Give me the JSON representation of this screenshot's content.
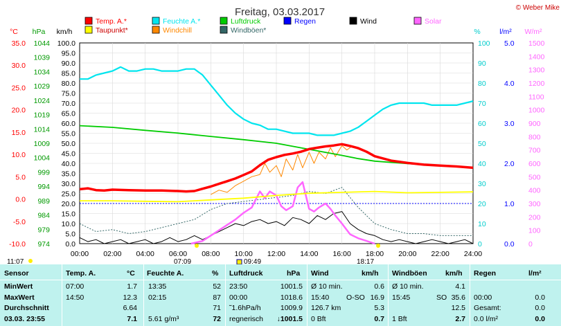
{
  "copyright": "© Weber Mike",
  "chart_data": {
    "type": "line",
    "title": "Freitag, 03.03.2017",
    "x_ticks": [
      "00:00",
      "02:00",
      "04:00",
      "06:00",
      "08:00",
      "10:00",
      "12:00",
      "14:00",
      "16:00",
      "18:00",
      "20:00",
      "22:00",
      "24:00"
    ],
    "x_range_hours": [
      0,
      24
    ],
    "axes": {
      "temp_c": {
        "label": "°C",
        "range": [
          -10,
          35
        ],
        "ticks": [
          "35.0",
          "30.0",
          "25.0",
          "20.0",
          "15.0",
          "10.0",
          "5.0",
          "0.0",
          "-5.0",
          "-10.0"
        ],
        "color": "#ff0000"
      },
      "pressure_hpa": {
        "label": "hPa",
        "range": [
          974,
          1047
        ],
        "ticks": [
          "1044",
          "1039",
          "1034",
          "1029",
          "1024",
          "1019",
          "1014",
          "1009",
          "1004",
          "999",
          "994",
          "989",
          "984",
          "979",
          "974"
        ],
        "color": "#009900"
      },
      "speed_kmh": {
        "label": "km/h",
        "range": [
          0,
          100
        ],
        "ticks": [
          "100.0",
          "95.0",
          "90.0",
          "85.0",
          "80.0",
          "75.0",
          "70.0",
          "65.0",
          "60.0",
          "55.0",
          "50.0",
          "45.0",
          "40.0",
          "35.0",
          "30.0",
          "25.0",
          "20.0",
          "15.0",
          "10.0",
          "5.0",
          "0.0"
        ],
        "color": "#000000"
      },
      "humidity_pct": {
        "label": "%",
        "range": [
          0,
          100
        ],
        "ticks": [
          "100",
          "90",
          "80",
          "70",
          "60",
          "50",
          "40",
          "30",
          "20",
          "10",
          "0"
        ],
        "color": "#00cccc"
      },
      "rain_lm2": {
        "label": "l/m²",
        "range": [
          0,
          5
        ],
        "ticks": [
          "5.0",
          "4.0",
          "3.0",
          "2.0",
          "1.0",
          "0.0"
        ],
        "color": "#0000ff"
      },
      "solar_wm2": {
        "label": "W/m²",
        "range": [
          0,
          1500
        ],
        "ticks": [
          "1500",
          "1400",
          "1300",
          "1200",
          "1100",
          "1000",
          "900",
          "800",
          "700",
          "600",
          "500",
          "400",
          "300",
          "200",
          "100",
          "0"
        ],
        "color": "#ff66ff"
      }
    },
    "legend": [
      {
        "name": "Temp. A.*",
        "color": "#ff0000"
      },
      {
        "name": "Feuchte A.*",
        "color": "#00e5ee"
      },
      {
        "name": "Luftdruck",
        "color": "#00cc00"
      },
      {
        "name": "Regen",
        "color": "#0000ff"
      },
      {
        "name": "Wind",
        "color": "#000000"
      },
      {
        "name": "Solar",
        "color": "#ff66ff"
      },
      {
        "name": "Taupunkt*",
        "color": "#ffff00"
      },
      {
        "name": "Windchill",
        "color": "#ff8800"
      },
      {
        "name": "Windböen*",
        "color": "#336666"
      }
    ],
    "series": [
      {
        "name": "Temp. A.*",
        "axis": "temp_c",
        "color": "#ff0000",
        "x": [
          0,
          0.5,
          1,
          1.5,
          2,
          3,
          4,
          5,
          6,
          6.5,
          7,
          7.5,
          8,
          8.5,
          9,
          9.5,
          10,
          10.5,
          11,
          11.5,
          12,
          12.5,
          13,
          13.5,
          14,
          14.5,
          15,
          15.5,
          16,
          16.5,
          17,
          17.5,
          18,
          19,
          20,
          21,
          22,
          23,
          24
        ],
        "y": [
          2.2,
          2.4,
          2.0,
          1.9,
          2.1,
          2.0,
          1.9,
          1.9,
          1.8,
          1.7,
          1.8,
          2.3,
          2.8,
          3.4,
          4.0,
          4.6,
          5.4,
          6.2,
          7.6,
          8.8,
          9.4,
          9.9,
          10.2,
          10.6,
          11.2,
          11.5,
          11.8,
          12.0,
          12.3,
          11.9,
          11.4,
          10.6,
          9.6,
          8.6,
          8.1,
          7.7,
          7.5,
          7.3,
          7.0
        ]
      },
      {
        "name": "Feuchte A.*",
        "axis": "humidity_pct",
        "color": "#00e5ee",
        "x": [
          0,
          0.5,
          1,
          1.5,
          2,
          2.5,
          3,
          3.5,
          4,
          4.5,
          5,
          5.5,
          6,
          6.5,
          7,
          7.5,
          8,
          8.5,
          9,
          9.5,
          10,
          10.5,
          11,
          11.5,
          12,
          12.5,
          13,
          13.5,
          14,
          14.5,
          15,
          15.5,
          16,
          16.5,
          17,
          17.5,
          18,
          18.5,
          19,
          19.5,
          20,
          20.5,
          21,
          21.5,
          22,
          22.5,
          23,
          23.5,
          24
        ],
        "y": [
          82,
          82,
          84,
          85,
          86,
          88,
          86,
          86,
          87,
          87,
          86,
          86,
          86,
          87,
          87,
          84,
          79,
          74,
          69,
          65,
          62,
          60,
          59,
          57,
          57,
          56,
          55,
          55,
          55,
          54,
          54,
          54,
          55,
          56,
          58,
          61,
          64,
          67,
          69,
          70,
          70,
          70,
          70,
          69,
          69,
          69,
          69,
          70,
          71
        ]
      },
      {
        "name": "Luftdruck",
        "axis": "pressure_hpa",
        "color": "#00cc00",
        "x": [
          0,
          2,
          4,
          6,
          8,
          10,
          12,
          14,
          16,
          17,
          18,
          20,
          22,
          24
        ],
        "y": [
          1016.9,
          1016.3,
          1015.2,
          1014.2,
          1013.0,
          1011.8,
          1010.5,
          1008.3,
          1006.1,
          1004.9,
          1004.0,
          1003.1,
          1002.4,
          1001.6
        ]
      },
      {
        "name": "Taupunkt*",
        "axis": "temp_c",
        "color": "#ffff00",
        "x": [
          0,
          2,
          4,
          6,
          7,
          8,
          10,
          12,
          14,
          16,
          18,
          20,
          22,
          24
        ],
        "y": [
          -0.4,
          -0.4,
          -0.5,
          -0.6,
          -0.4,
          -0.2,
          0.2,
          0.8,
          1.3,
          1.5,
          1.7,
          1.4,
          1.5,
          1.6
        ]
      },
      {
        "name": "Windchill",
        "axis": "temp_c",
        "color": "#ff8800",
        "x": [
          8,
          8.5,
          9,
          9.5,
          10,
          10.5,
          11,
          11.3,
          11.6,
          12,
          12.3,
          12.6,
          13,
          13.3,
          13.6,
          14,
          14.3,
          14.6,
          15,
          15.3,
          15.6,
          16,
          16.3,
          16.6,
          17
        ],
        "y": [
          1.0,
          2.0,
          1.5,
          3.0,
          4.0,
          5.0,
          5.5,
          8.0,
          6.0,
          7.5,
          5.0,
          9.0,
          6.5,
          10.0,
          7.0,
          10.5,
          8.0,
          10.5,
          9.0,
          11.5,
          9.5,
          12.0,
          11.0,
          11.8,
          11.2
        ]
      },
      {
        "name": "Wind",
        "axis": "speed_kmh",
        "color": "#000000",
        "x": [
          0,
          0.5,
          1,
          1.5,
          2,
          2.5,
          3,
          3.5,
          4,
          4.5,
          5,
          5.5,
          6,
          6.5,
          7,
          7.5,
          8,
          8.5,
          9,
          9.5,
          10,
          10.5,
          11,
          11.5,
          12,
          12.5,
          13,
          13.5,
          14,
          14.5,
          15,
          15.5,
          16,
          16.5,
          17,
          17.5,
          18,
          18.5,
          19,
          19.5,
          20,
          20.5,
          21,
          21.5,
          22,
          22.5,
          23,
          23.5,
          24
        ],
        "y": [
          3,
          1,
          2,
          0,
          1,
          2,
          0,
          1,
          2,
          0,
          1,
          3,
          1,
          2,
          4,
          2,
          4,
          6,
          8,
          10,
          9,
          11,
          12,
          10,
          11,
          9,
          13,
          12,
          10,
          14,
          12,
          15,
          16,
          10,
          7,
          5,
          4,
          2,
          1,
          2,
          1,
          0,
          1,
          2,
          1,
          0,
          1,
          2,
          0
        ]
      },
      {
        "name": "Windböen*",
        "axis": "speed_kmh",
        "color": "#336666",
        "x": [
          0,
          1,
          2,
          3,
          4,
          5,
          6,
          7,
          8,
          9,
          10,
          11,
          12,
          13,
          14,
          15,
          16,
          17,
          18,
          19,
          20,
          21,
          22,
          23,
          24
        ],
        "y": [
          10,
          6,
          7,
          5,
          6,
          8,
          10,
          12,
          17,
          20,
          21,
          22,
          23,
          24,
          26,
          25,
          28,
          18,
          10,
          7,
          5,
          5,
          4,
          4,
          4
        ]
      },
      {
        "name": "Solar",
        "axis": "solar_wm2",
        "color": "#ff66ff",
        "x": [
          6.8,
          7.5,
          8,
          8.5,
          9,
          9.5,
          10,
          10.5,
          11,
          11.3,
          11.6,
          12,
          12.3,
          12.6,
          13,
          13.3,
          13.6,
          14,
          14.3,
          14.6,
          15,
          15.3,
          15.6,
          16,
          16.5,
          17,
          17.5,
          18
        ],
        "y": [
          0,
          20,
          60,
          100,
          140,
          180,
          230,
          270,
          390,
          340,
          390,
          360,
          280,
          250,
          280,
          420,
          460,
          260,
          240,
          270,
          300,
          260,
          210,
          150,
          70,
          40,
          20,
          0
        ]
      }
    ],
    "rain_line_level": 1.0,
    "sun_markers": [
      "11:07",
      "07:09",
      "09:49",
      "18:17"
    ]
  },
  "table": {
    "headers": {
      "sensor": "Sensor",
      "temp": "Temp. A.",
      "temp_unit": "°C",
      "hum": "Feuchte A.",
      "hum_unit": "%",
      "press": "Luftdruck",
      "press_unit": "hPa",
      "wind": "Wind",
      "wind_unit": "km/h",
      "gust": "Windböen",
      "gust_unit": "km/h",
      "rain": "Regen",
      "rain_unit": "l/m²"
    },
    "rows": [
      {
        "label": "MinWert",
        "temp_t": "07:00",
        "temp_v": "1.7",
        "hum_t": "13:35",
        "hum_v": "52",
        "press_t": "23:50",
        "press_v": "1001.5",
        "wind_t": "Ø 10 min.",
        "wind_v": "0.6",
        "gust_t": "Ø 10 min.",
        "gust_v": "4.1",
        "rain_t": "",
        "rain_v": ""
      },
      {
        "label": "MaxWert",
        "temp_t": "14:50",
        "temp_v": "12.3",
        "hum_t": "02:15",
        "hum_v": "87",
        "press_t": "00:00",
        "press_v": "1018.6",
        "wind_t": "15:40",
        "wind_dir": "O-SO",
        "wind_v": "16.9",
        "gust_t": "15:45",
        "gust_dir": "SO",
        "gust_v": "35.6",
        "rain_t": "00:00",
        "rain_v": "0.0"
      },
      {
        "label": "Durchschnitt",
        "temp_t": "",
        "temp_v": "6.64",
        "hum_t": "",
        "hum_v": "71",
        "press_t": "˜1.6hPa/h",
        "press_v": "1009.9",
        "wind_t": "126.7 km",
        "wind_v": "5.3",
        "gust_t": "",
        "gust_v": "12.5",
        "rain_t": "Gesamt:",
        "rain_v": "0.0"
      },
      {
        "label": "03.03. 23:55",
        "temp_t": "",
        "temp_v": "7.1",
        "hum_t": "5.61 g/m³",
        "hum_v": "72",
        "press_t": "regnerisch",
        "press_v": "↓1001.5",
        "wind_t": "0 Bft",
        "wind_v": "0.7",
        "gust_t": "1 Bft",
        "gust_v": "2.7",
        "rain_t": "0.0 l/m²",
        "rain_v": "0.0"
      }
    ]
  }
}
